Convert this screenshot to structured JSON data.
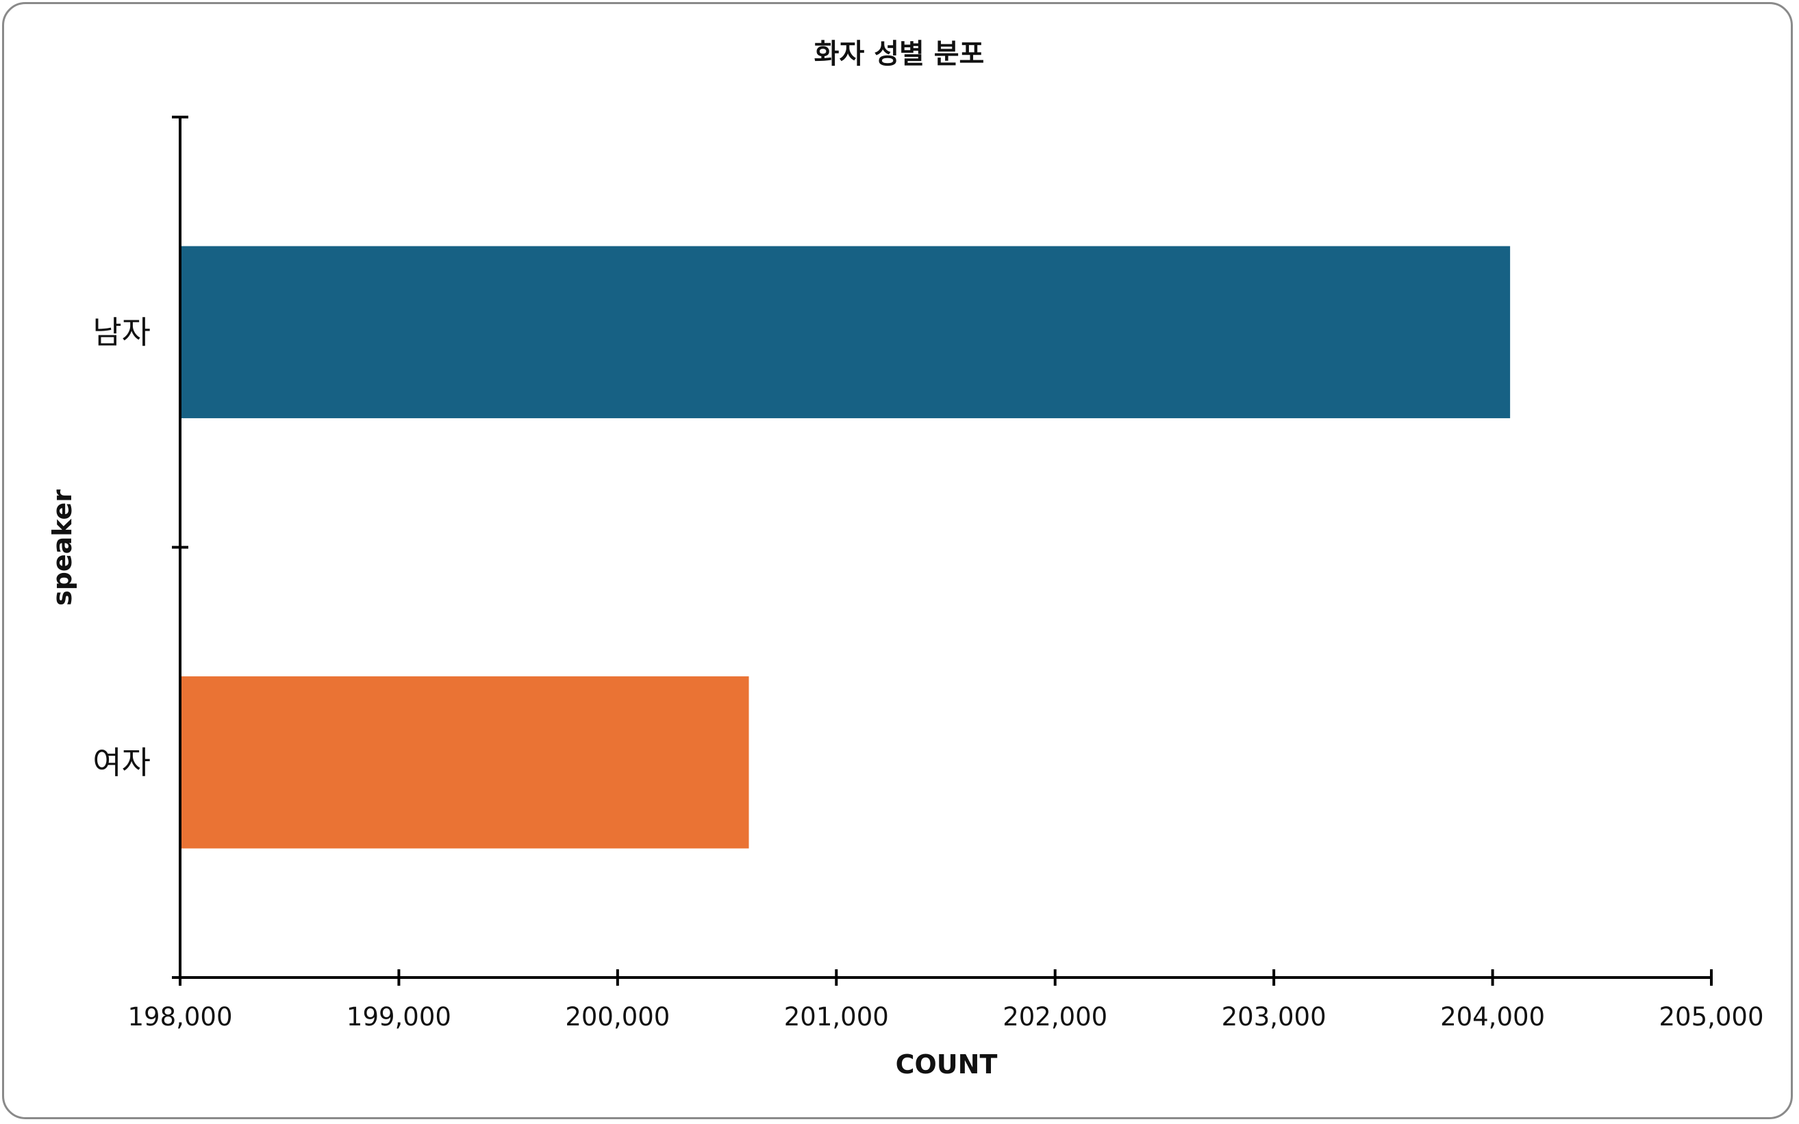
{
  "chart_data": {
    "type": "bar",
    "orientation": "horizontal",
    "title": "화자 성별 분포",
    "xlabel": "COUNT",
    "ylabel": "speaker",
    "categories": [
      "남자",
      "여자"
    ],
    "values": [
      204080,
      200600
    ],
    "colors": [
      "#176184",
      "#ea7334"
    ],
    "xlim": [
      198000,
      205000
    ],
    "xticks": [
      198000,
      199000,
      200000,
      201000,
      202000,
      203000,
      204000,
      205000
    ],
    "xtick_labels": [
      "198,000",
      "199,000",
      "200,000",
      "201,000",
      "202,000",
      "203,000",
      "204,000",
      "205,000"
    ],
    "grid": false,
    "legend": "none"
  }
}
